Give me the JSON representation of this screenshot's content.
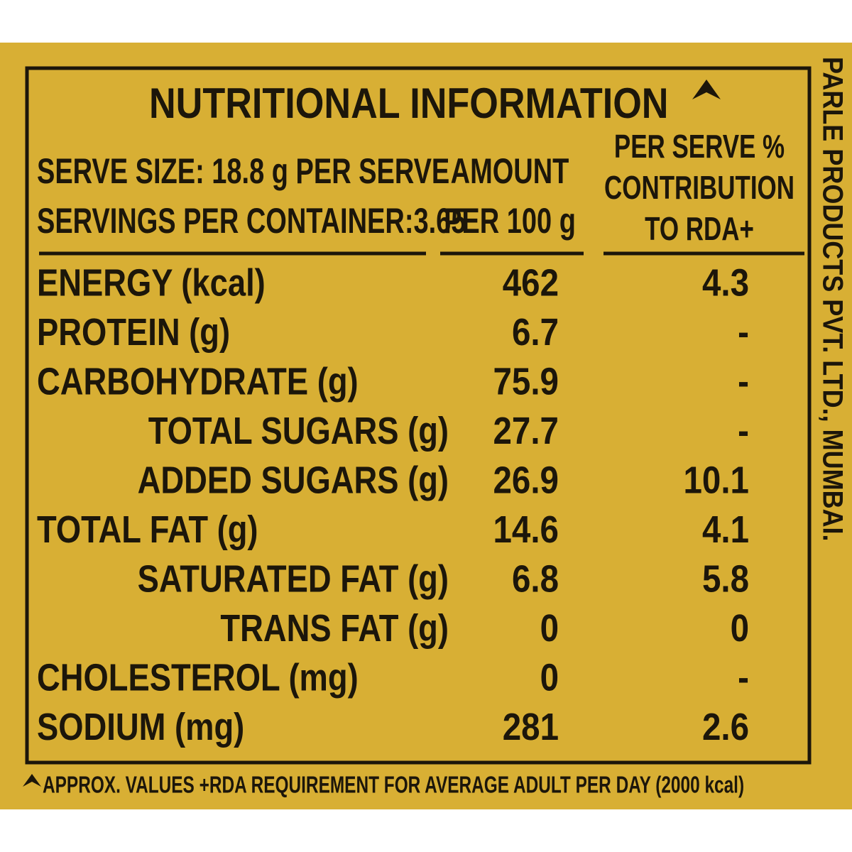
{
  "header": {
    "title": "NUTRITIONAL INFORMATION",
    "serve_size": "SERVE SIZE: 18.8 g PER SERVE",
    "servings": "SERVINGS PER CONTAINER:3.65",
    "amount_heading": [
      "AMOUNT",
      "PER 100 g"
    ],
    "rda_heading": [
      "PER SERVE %",
      "CONTRIBUTION",
      "TO RDA+"
    ]
  },
  "table": {
    "rows": [
      [
        "ENERGY (kcal)",
        462,
        4.3
      ],
      [
        "PROTEIN (g)",
        6.7,
        "-"
      ],
      [
        "CARBOHYDRATE (g)",
        75.9,
        "-"
      ],
      [
        "TOTAL SUGARS (g)",
        27.7,
        "-"
      ],
      [
        "ADDED SUGARS (g)",
        26.9,
        10.1
      ],
      [
        "TOTAL FAT (g)",
        14.6,
        4.1
      ],
      [
        "SATURATED FAT (g)",
        6.8,
        5.8
      ],
      [
        "TRANS FAT (g)",
        0,
        0
      ],
      [
        "CHOLESTEROL (mg)",
        0,
        "-"
      ],
      [
        "SODIUM (mg)",
        281,
        2.6
      ]
    ]
  },
  "footnote": "APPROX. VALUES +RDA REQUIREMENT FOR AVERAGE ADULT PER DAY (2000 kcal)",
  "side_text": "PARLE PRODUCTS PVT. LTD., MUMBAI."
}
